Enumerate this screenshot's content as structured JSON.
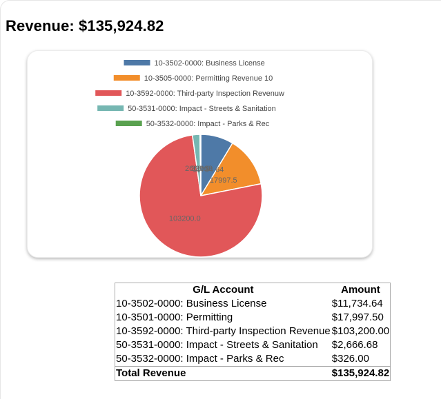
{
  "page": {
    "title": "Revenue: $135,924.82"
  },
  "chart_data": {
    "type": "pie",
    "title": "",
    "legend_position": "top",
    "series": [
      {
        "name": "10-3502-0000: Business License",
        "value": 11734.64,
        "label": "11734.64",
        "color": "#4e79a7"
      },
      {
        "name": "10-3505-0000: Permitting Revenue 10",
        "value": 17997.5,
        "label": "17997.5",
        "color": "#f28e2b"
      },
      {
        "name": "10-3592-0000: Third-party Inspection Revenuw",
        "value": 103200.0,
        "label": "103200.0",
        "color": "#e15759"
      },
      {
        "name": "50-3531-0000: Impact - Streets & Sanitation",
        "value": 2666.68,
        "label": "2666.68",
        "color": "#76b7b2"
      },
      {
        "name": "50-3532-0000: Impact - Parks & Rec",
        "value": 326.0,
        "label": "326.0",
        "color": "#59a14f"
      }
    ]
  },
  "table": {
    "headers": [
      "G/L Account",
      "Amount"
    ],
    "rows": [
      {
        "account": "10-3502-0000: Business License",
        "amount": "$11,734.64"
      },
      {
        "account": "10-3501-0000: Permitting",
        "amount": "$17,997.50"
      },
      {
        "account": "10-3592-0000: Third-party Inspection Revenue",
        "amount": "$103,200.00"
      },
      {
        "account": "50-3531-0000: Impact - Streets & Sanitation",
        "amount": "$2,666.68"
      },
      {
        "account": "50-3532-0000: Impact - Parks & Rec",
        "amount": "$326.00"
      }
    ],
    "total": {
      "label": "Total Revenue",
      "amount": "$135,924.82"
    }
  }
}
